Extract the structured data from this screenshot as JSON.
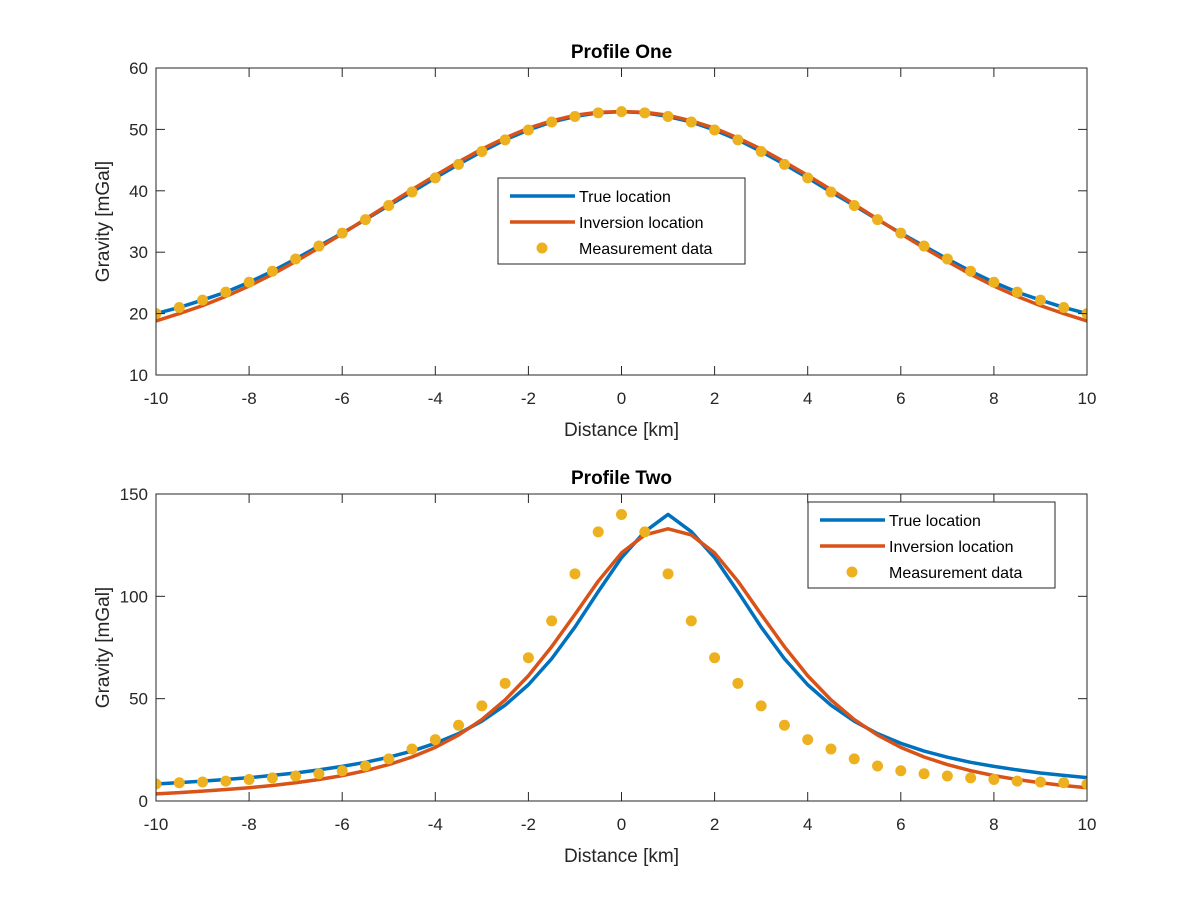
{
  "chart_data": [
    {
      "type": "line",
      "title": "Profile One",
      "xlabel": "Distance [km]",
      "ylabel": "Gravity [mGal]",
      "xlim": [
        -10,
        10
      ],
      "ylim": [
        10,
        60
      ],
      "xticks": [
        "-10",
        "-8",
        "-6",
        "-4",
        "-2",
        "0",
        "2",
        "4",
        "6",
        "8",
        "10"
      ],
      "yticks": [
        "10",
        "20",
        "30",
        "40",
        "50",
        "60"
      ],
      "grid": false,
      "legend_location": "center",
      "legend": [
        "True location",
        "Inversion location",
        "Measurement data"
      ],
      "x": [
        -10,
        -9.5,
        -9,
        -8.5,
        -8,
        -7.5,
        -7,
        -6.5,
        -6,
        -5.5,
        -5,
        -4.5,
        -4,
        -3.5,
        -3,
        -2.5,
        -2,
        -1.5,
        -1,
        -0.5,
        0,
        0.5,
        1,
        1.5,
        2,
        2.5,
        3,
        3.5,
        4,
        4.5,
        5,
        5.5,
        6,
        6.5,
        7,
        7.5,
        8,
        8.5,
        9,
        9.5,
        10
      ],
      "series": [
        {
          "name": "True location",
          "style": "line",
          "color": "#0072BD",
          "values": [
            20.0,
            21.0,
            22.2,
            23.5,
            25.1,
            26.9,
            28.9,
            31.0,
            33.1,
            35.3,
            37.6,
            39.8,
            42.1,
            44.3,
            46.4,
            48.3,
            49.9,
            51.2,
            52.1,
            52.7,
            52.9,
            52.7,
            52.1,
            51.2,
            49.9,
            48.3,
            46.4,
            44.3,
            42.1,
            39.8,
            37.6,
            35.3,
            33.1,
            31.0,
            28.9,
            26.9,
            25.1,
            23.5,
            22.2,
            21.0,
            20.0
          ]
        },
        {
          "name": "Inversion location",
          "style": "line",
          "color": "#D95319",
          "values": [
            18.8,
            20.0,
            21.3,
            22.8,
            24.5,
            26.4,
            28.5,
            30.7,
            33.0,
            35.4,
            37.8,
            40.2,
            42.5,
            44.7,
            46.8,
            48.6,
            50.2,
            51.4,
            52.3,
            52.8,
            52.9,
            52.8,
            52.3,
            51.4,
            50.2,
            48.6,
            46.8,
            44.7,
            42.5,
            40.2,
            37.8,
            35.4,
            33.0,
            30.7,
            28.5,
            26.4,
            24.5,
            22.8,
            21.3,
            20.0,
            18.8
          ]
        },
        {
          "name": "Measurement data",
          "style": "markers",
          "color": "#EDB120",
          "values": [
            20.0,
            21.0,
            22.2,
            23.5,
            25.1,
            26.9,
            28.9,
            31.0,
            33.1,
            35.3,
            37.6,
            39.8,
            42.1,
            44.3,
            46.4,
            48.3,
            49.9,
            51.2,
            52.1,
            52.7,
            52.9,
            52.7,
            52.1,
            51.2,
            49.9,
            48.3,
            46.4,
            44.3,
            42.1,
            39.8,
            37.6,
            35.3,
            33.1,
            31.0,
            28.9,
            26.9,
            25.1,
            23.5,
            22.2,
            21.0,
            20.0
          ]
        }
      ]
    },
    {
      "type": "line",
      "title": "Profile Two",
      "xlabel": "Distance [km]",
      "ylabel": "Gravity [mGal]",
      "xlim": [
        -10,
        10
      ],
      "ylim": [
        0,
        150
      ],
      "xticks": [
        "-10",
        "-8",
        "-6",
        "-4",
        "-2",
        "0",
        "2",
        "4",
        "6",
        "8",
        "10"
      ],
      "yticks": [
        "0",
        "50",
        "100",
        "150"
      ],
      "grid": false,
      "legend_location": "top-right",
      "legend": [
        "True location",
        "Inversion location",
        "Measurement data"
      ],
      "x": [
        -10,
        -9.5,
        -9,
        -8.5,
        -8,
        -7.5,
        -7,
        -6.5,
        -6,
        -5.5,
        -5,
        -4.5,
        -4,
        -3.5,
        -3,
        -2.5,
        -2,
        -1.5,
        -1,
        -0.5,
        0,
        0.5,
        1,
        1.5,
        2,
        2.5,
        3,
        3.5,
        4,
        4.5,
        5,
        5.5,
        6,
        6.5,
        7,
        7.5,
        8,
        8.5,
        9,
        9.5,
        10
      ],
      "series": [
        {
          "name": "True location",
          "style": "line",
          "color": "#0072BD",
          "values": [
            8.3,
            9.0,
            9.7,
            10.5,
            11.4,
            12.5,
            13.7,
            15.2,
            16.9,
            18.9,
            21.4,
            24.4,
            28.2,
            32.9,
            39.0,
            46.8,
            56.8,
            69.5,
            85.0,
            102.3,
            118.9,
            131.6,
            140.0,
            131.6,
            118.9,
            102.3,
            85.0,
            69.5,
            56.8,
            46.8,
            39.0,
            32.9,
            28.2,
            24.4,
            21.4,
            18.9,
            16.9,
            15.2,
            13.7,
            12.5,
            11.4
          ]
        },
        {
          "name": "Inversion location",
          "style": "line",
          "color": "#D95319",
          "values": [
            3.5,
            4.1,
            4.8,
            5.6,
            6.5,
            7.6,
            8.9,
            10.5,
            12.4,
            14.8,
            17.8,
            21.5,
            26.2,
            32.2,
            39.8,
            49.4,
            61.2,
            75.4,
            91.2,
            107.4,
            121.2,
            130.0,
            133.0,
            130.0,
            121.2,
            107.4,
            91.2,
            75.4,
            61.2,
            49.4,
            39.8,
            32.2,
            26.2,
            21.5,
            17.8,
            14.8,
            12.4,
            10.5,
            8.9,
            7.6,
            6.5
          ]
        },
        {
          "name": "Measurement data",
          "style": "markers",
          "color": "#EDB120",
          "values": [
            8.3,
            8.9,
            9.3,
            9.7,
            10.5,
            11.3,
            12.2,
            13.3,
            14.8,
            17.1,
            20.6,
            25.4,
            30.0,
            37.0,
            46.5,
            57.5,
            70.0,
            88.0,
            111.0,
            131.5,
            140.0,
            131.5,
            111.0,
            88.0,
            70.0,
            57.5,
            46.5,
            37.0,
            30.0,
            25.4,
            20.6,
            17.1,
            14.8,
            13.3,
            12.2,
            11.3,
            10.5,
            9.7,
            9.3,
            8.9,
            8.3
          ]
        }
      ]
    }
  ]
}
